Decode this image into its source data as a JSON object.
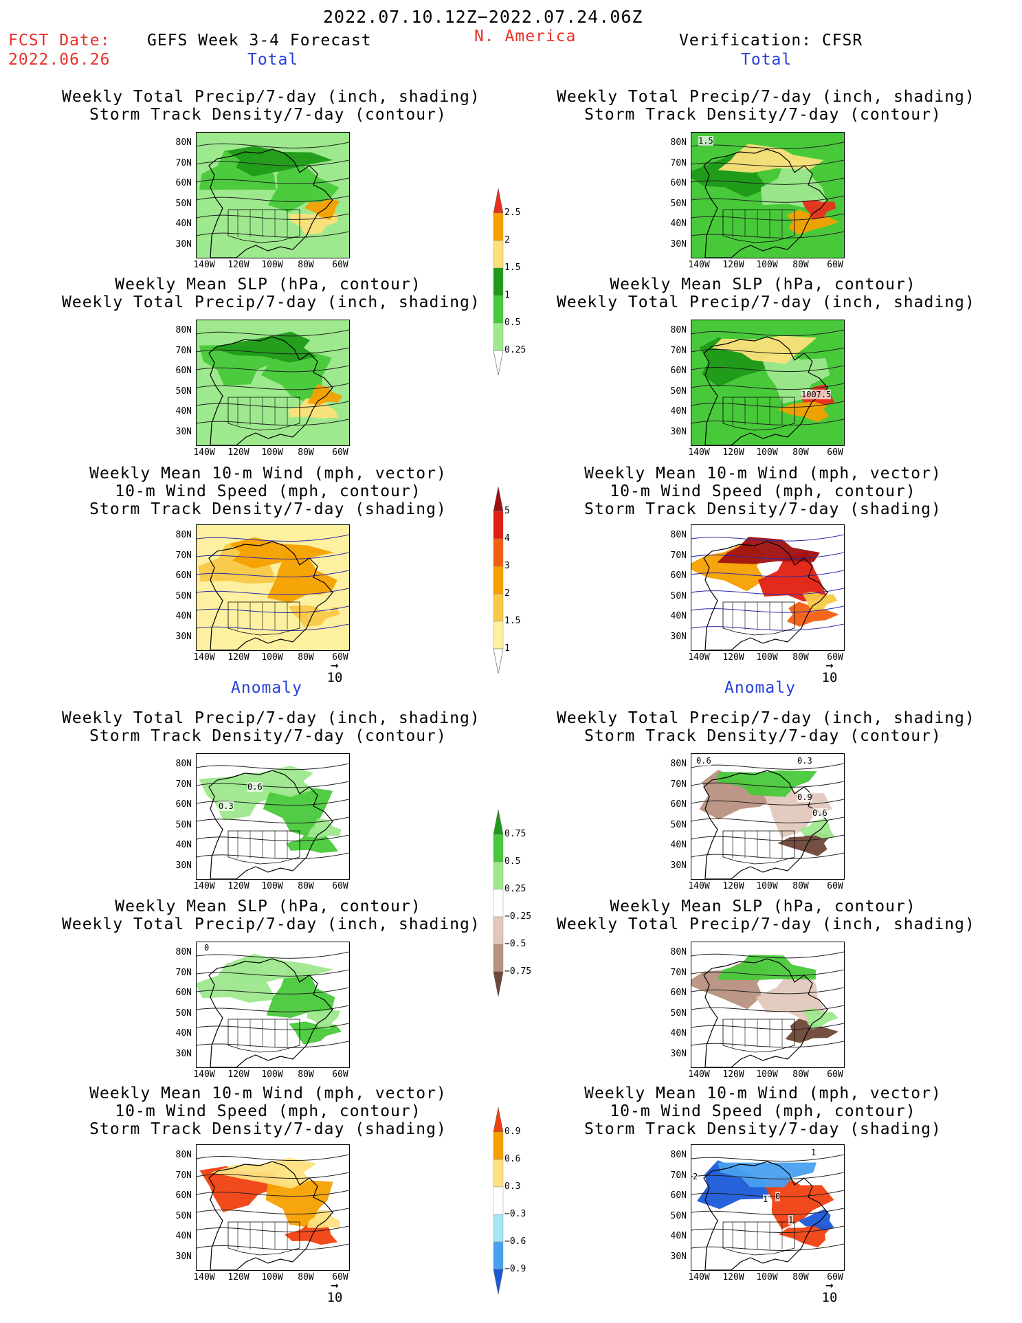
{
  "header": {
    "date_range": "2022.07.10.12Z−2022.07.24.06Z",
    "fcst_label": "FCST Date:",
    "fcst_date": "2022.06.26",
    "forecast_name": "GEFS Week 3-4 Forecast",
    "region": "N. America",
    "verification": "Verification: CFSR"
  },
  "sections": {
    "total": "Total",
    "anomaly": "Anomaly"
  },
  "titles": {
    "precip_storm": [
      "Weekly Total Precip/7-day (inch, shading)",
      "Storm Track Density/7-day (contour)"
    ],
    "slp_precip": [
      "Weekly Mean SLP (hPa, contour)",
      "Weekly Total Precip/7-day (inch, shading)"
    ],
    "wind": [
      "Weekly Mean 10-m Wind (mph, vector)",
      "10-m Wind Speed (mph, contour)",
      "Storm Track Density/7-day (shading)"
    ]
  },
  "axes": {
    "lat_labels": [
      "80N",
      "70N",
      "60N",
      "50N",
      "40N",
      "30N"
    ],
    "lon_labels": [
      "140W",
      "120W",
      "100W",
      "80W",
      "60W"
    ]
  },
  "vector_ref": "10",
  "map_annotations": {
    "fcst_anom_precip": [
      "0.6",
      "0.3"
    ],
    "ver_total_precip": "1.5",
    "ver_total_slp": "1007.5",
    "ver_anom_precip": [
      "0.6",
      "0.3",
      "0.9",
      "0.6"
    ],
    "fcst_anom_slp": "0",
    "ver_anom_wind": [
      "1",
      "2",
      "1",
      "0",
      "1"
    ]
  },
  "colorbars": [
    {
      "name": "precip-total",
      "labels": [
        "2.5",
        "2",
        "1.5",
        "1",
        "0.5",
        "0.25"
      ],
      "colors": [
        "#e8301c",
        "#f6a000",
        "#fce07a",
        "#1f9a18",
        "#48c93a",
        "#9ee88e",
        "#ffffff"
      ]
    },
    {
      "name": "storm-total",
      "labels": [
        "5",
        "4",
        "3",
        "2",
        "1.5",
        "1"
      ],
      "colors": [
        "#a01010",
        "#e02010",
        "#f35f10",
        "#f6a000",
        "#f8c848",
        "#fdf0a0",
        "#ffffff"
      ]
    },
    {
      "name": "precip-anom",
      "labels": [
        "0.75",
        "0.5",
        "0.25",
        "−0.25",
        "−0.5",
        "−0.75"
      ],
      "colors": [
        "#1f9a18",
        "#48c93a",
        "#9ee88e",
        "#ffffff",
        "#e2c8bc",
        "#b89080",
        "#6e4638"
      ]
    },
    {
      "name": "storm-anom",
      "labels": [
        "0.9",
        "0.6",
        "0.3",
        "−0.3",
        "−0.6",
        "−0.9"
      ],
      "colors": [
        "#f04010",
        "#f6a000",
        "#fde080",
        "#ffffff",
        "#a6e4f6",
        "#48a0f0",
        "#1a5ad8"
      ]
    }
  ]
}
